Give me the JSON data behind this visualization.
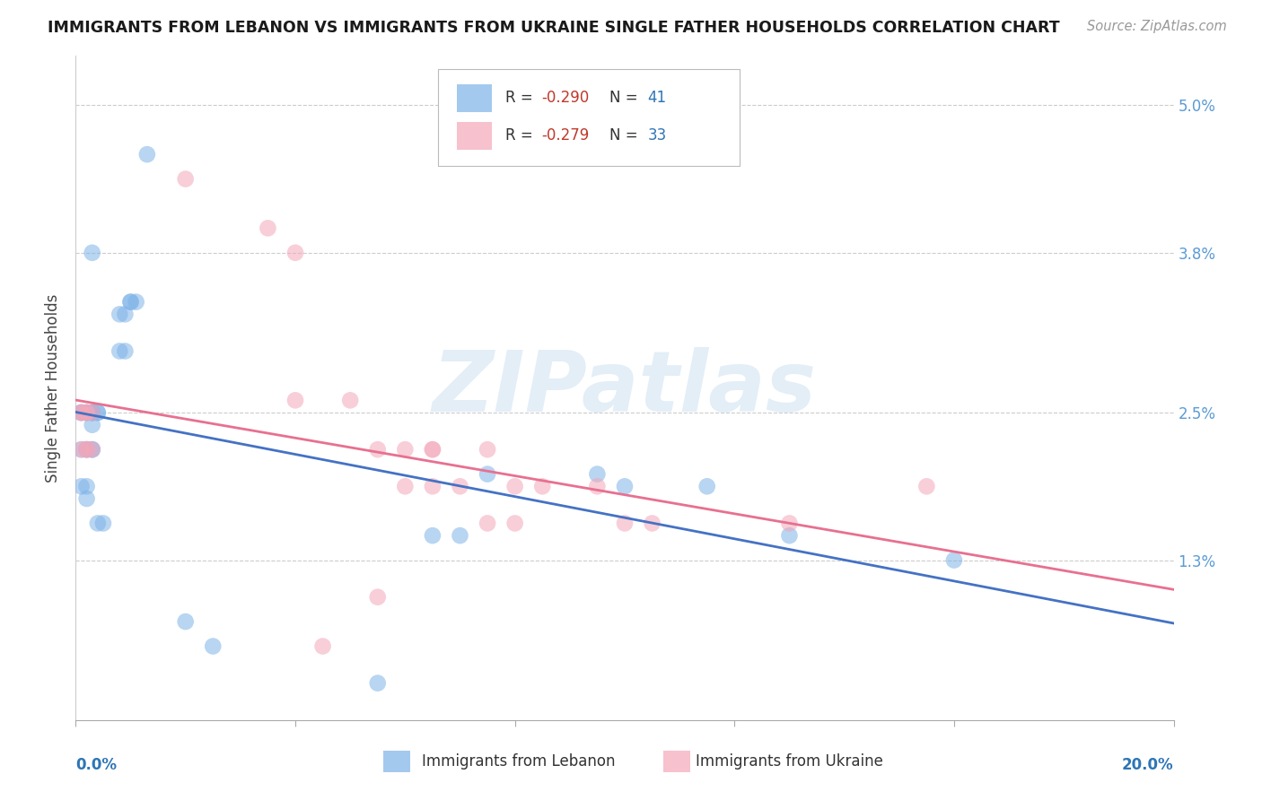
{
  "title": "IMMIGRANTS FROM LEBANON VS IMMIGRANTS FROM UKRAINE SINGLE FATHER HOUSEHOLDS CORRELATION CHART",
  "source": "Source: ZipAtlas.com",
  "ylabel": "Single Father Households",
  "xlim": [
    0.0,
    0.2
  ],
  "ylim": [
    0.0,
    0.054
  ],
  "yticks": [
    0.013,
    0.025,
    0.038,
    0.05
  ],
  "ytick_labels": [
    "1.3%",
    "2.5%",
    "3.8%",
    "5.0%"
  ],
  "xticks": [
    0.0,
    0.04,
    0.08,
    0.12,
    0.16,
    0.2
  ],
  "color_lebanon": "#7EB3E8",
  "color_ukraine": "#F4A7B9",
  "color_leb_line": "#4472C4",
  "color_ukr_line": "#E87090",
  "watermark_text": "ZIPatlas",
  "legend_R1": "-0.290",
  "legend_N1": "41",
  "legend_R2": "-0.279",
  "legend_N2": "33",
  "lebanon_x": [
    0.013,
    0.003,
    0.008,
    0.009,
    0.01,
    0.01,
    0.011,
    0.008,
    0.009,
    0.001,
    0.001,
    0.002,
    0.002,
    0.003,
    0.003,
    0.003,
    0.003,
    0.003,
    0.004,
    0.004,
    0.001,
    0.002,
    0.002,
    0.003,
    0.003,
    0.001,
    0.002,
    0.002,
    0.004,
    0.005,
    0.075,
    0.095,
    0.1,
    0.115,
    0.13,
    0.16,
    0.065,
    0.07,
    0.02,
    0.025,
    0.055
  ],
  "lebanon_y": [
    0.046,
    0.038,
    0.033,
    0.033,
    0.034,
    0.034,
    0.034,
    0.03,
    0.03,
    0.025,
    0.025,
    0.025,
    0.025,
    0.025,
    0.025,
    0.025,
    0.025,
    0.024,
    0.025,
    0.025,
    0.022,
    0.022,
    0.022,
    0.022,
    0.022,
    0.019,
    0.019,
    0.018,
    0.016,
    0.016,
    0.02,
    0.02,
    0.019,
    0.019,
    0.015,
    0.013,
    0.015,
    0.015,
    0.008,
    0.006,
    0.003
  ],
  "ukraine_x": [
    0.02,
    0.035,
    0.04,
    0.001,
    0.001,
    0.002,
    0.002,
    0.003,
    0.001,
    0.002,
    0.002,
    0.003,
    0.04,
    0.05,
    0.055,
    0.06,
    0.065,
    0.065,
    0.06,
    0.065,
    0.07,
    0.08,
    0.085,
    0.075,
    0.08,
    0.1,
    0.105,
    0.095,
    0.13,
    0.155,
    0.075,
    0.055,
    0.045
  ],
  "ukraine_y": [
    0.044,
    0.04,
    0.038,
    0.025,
    0.025,
    0.025,
    0.025,
    0.025,
    0.022,
    0.022,
    0.022,
    0.022,
    0.026,
    0.026,
    0.022,
    0.022,
    0.022,
    0.022,
    0.019,
    0.019,
    0.019,
    0.019,
    0.019,
    0.016,
    0.016,
    0.016,
    0.016,
    0.019,
    0.016,
    0.019,
    0.022,
    0.01,
    0.006
  ]
}
